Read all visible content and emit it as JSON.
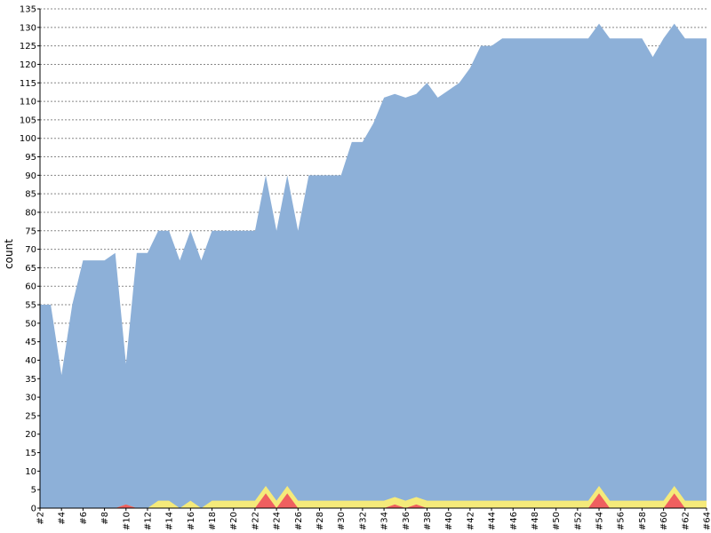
{
  "chart_data": {
    "type": "area",
    "stacked": true,
    "title": "",
    "xlabel": "",
    "ylabel": "count",
    "ylim": [
      0,
      135
    ],
    "ytick_step": 5,
    "grid": true,
    "x": [
      2,
      3,
      4,
      5,
      6,
      7,
      8,
      9,
      10,
      11,
      12,
      13,
      14,
      15,
      16,
      17,
      18,
      19,
      20,
      21,
      22,
      23,
      24,
      25,
      26,
      27,
      28,
      29,
      30,
      31,
      32,
      33,
      34,
      35,
      36,
      37,
      38,
      39,
      40,
      41,
      42,
      43,
      44,
      45,
      46,
      47,
      48,
      49,
      50,
      51,
      52,
      53,
      54,
      55,
      56,
      57,
      58,
      59,
      60,
      61,
      62,
      63,
      64
    ],
    "x_tick_labels": [
      "#2",
      "#4",
      "#6",
      "#8",
      "#10",
      "#12",
      "#14",
      "#16",
      "#18",
      "#20",
      "#22",
      "#24",
      "#26",
      "#28",
      "#30",
      "#32",
      "#34",
      "#36",
      "#38",
      "#40",
      "#42",
      "#44",
      "#46",
      "#48",
      "#50",
      "#52",
      "#54",
      "#56",
      "#58",
      "#60",
      "#62",
      "#64"
    ],
    "y_tick_labels": [
      "0",
      "5",
      "10",
      "15",
      "20",
      "25",
      "30",
      "35",
      "40",
      "45",
      "50",
      "55",
      "60",
      "65",
      "70",
      "75",
      "80",
      "85",
      "90",
      "95",
      "100",
      "105",
      "110",
      "115",
      "120",
      "125",
      "130",
      "135"
    ],
    "series": [
      {
        "color": "#ef5f5f",
        "values": [
          0,
          0,
          0,
          0,
          0,
          0,
          0,
          0,
          1,
          0,
          0,
          0,
          0,
          0,
          0,
          0,
          0,
          0,
          0,
          0,
          0,
          4,
          0,
          4,
          0,
          0,
          0,
          0,
          0,
          0,
          0,
          0,
          0,
          1,
          0,
          1,
          0,
          0,
          0,
          0,
          0,
          0,
          0,
          0,
          0,
          0,
          0,
          0,
          0,
          0,
          0,
          0,
          4,
          0,
          0,
          0,
          0,
          0,
          0,
          4,
          0,
          0,
          0
        ]
      },
      {
        "color": "#f5ea7a",
        "values": [
          0,
          0,
          0,
          0,
          0,
          0,
          0,
          0,
          0,
          0,
          0,
          2,
          2,
          0,
          2,
          0,
          2,
          2,
          2,
          2,
          2,
          2,
          2,
          2,
          2,
          2,
          2,
          2,
          2,
          2,
          2,
          2,
          2,
          2,
          2,
          2,
          2,
          2,
          2,
          2,
          2,
          2,
          2,
          2,
          2,
          2,
          2,
          2,
          2,
          2,
          2,
          2,
          2,
          2,
          2,
          2,
          2,
          2,
          2,
          2,
          2,
          2,
          2
        ]
      },
      {
        "color": "#8db0d8",
        "values": [
          55,
          55,
          36,
          55,
          67,
          67,
          67,
          69,
          38,
          69,
          69,
          73,
          73,
          67,
          73,
          67,
          73,
          73,
          73,
          73,
          73,
          84,
          73,
          84,
          73,
          88,
          88,
          88,
          88,
          97,
          97,
          102,
          109,
          109,
          109,
          109,
          113,
          109,
          111,
          113,
          117,
          123,
          123,
          125,
          125,
          125,
          125,
          125,
          125,
          125,
          125,
          125,
          125,
          125,
          125,
          125,
          125,
          120,
          125,
          125,
          125,
          125,
          125
        ]
      }
    ]
  },
  "colors": {
    "grid": "#888888",
    "axis": "#000000",
    "background": "#ffffff"
  }
}
